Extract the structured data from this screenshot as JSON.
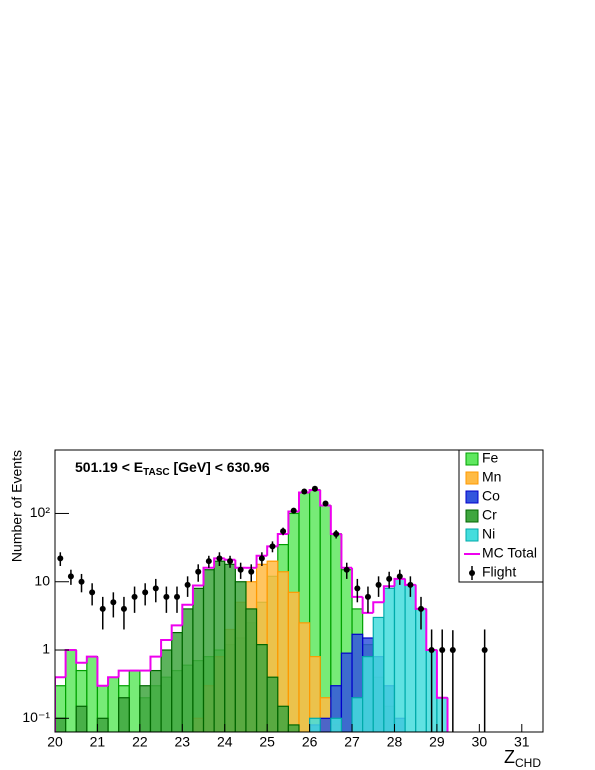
{
  "chart_data": {
    "type": "histogram",
    "title": {
      "prefix": "501.19 < E",
      "subscript": "TASC",
      "suffix": " [GeV] < 630.96"
    },
    "x_label": {
      "main": "Z",
      "subscript": "CHD"
    },
    "y_label": "Number of Events",
    "log_y": true,
    "legend": "top-right",
    "bins": [
      20,
      20.25,
      20.5,
      20.75,
      21,
      21.25,
      21.5,
      21.75,
      22,
      22.25,
      22.5,
      22.75,
      23,
      23.25,
      23.5,
      23.75,
      24,
      24.25,
      24.5,
      24.75,
      25,
      25.25,
      25.5,
      25.75,
      26,
      26.25,
      26.5,
      26.75,
      27,
      27.25,
      27.5,
      27.75,
      28,
      28.25,
      28.5,
      28.75,
      29,
      29.25,
      29.5,
      29.75,
      30,
      30.25,
      30.5,
      30.75,
      31,
      31.25,
      31.5
    ],
    "xlim": [
      20,
      31.5
    ],
    "xticks": [
      20,
      21,
      22,
      23,
      24,
      25,
      26,
      27,
      28,
      29,
      30,
      31
    ],
    "ylim": [
      0.063,
      850
    ],
    "yticks": [
      {
        "value": 0.1,
        "label": "10⁻¹"
      },
      1,
      10,
      {
        "value": 100,
        "label": "10²"
      }
    ],
    "series": [
      {
        "name": "Fe",
        "style": "filled",
        "color": "#5fe85f",
        "edge": "#00a000",
        "values": [
          0.3,
          1,
          0.5,
          0.8,
          0.3,
          0.4,
          0.3,
          0.5,
          0.2,
          0.3,
          0.4,
          0.5,
          0.6,
          0.7,
          0.8,
          1,
          1.2,
          1.5,
          2.5,
          5,
          12,
          35,
          100,
          200,
          220,
          130,
          50,
          15,
          4,
          1.2,
          0.4,
          0.15,
          null,
          null,
          null,
          null,
          null,
          null,
          null,
          null,
          null,
          null,
          null,
          null,
          null,
          null
        ]
      },
      {
        "name": "Mn",
        "style": "filled",
        "color": "#ffbb44",
        "edge": "#ff9900",
        "values": [
          null,
          null,
          null,
          null,
          null,
          null,
          null,
          null,
          null,
          null,
          null,
          null,
          null,
          0.1,
          0.3,
          0.8,
          2,
          5,
          10,
          18,
          20,
          14,
          7,
          2.5,
          0.8,
          0.2,
          0.08,
          null,
          null,
          null,
          null,
          null,
          null,
          null,
          null,
          null,
          null,
          null,
          null,
          null,
          null,
          null,
          null,
          null,
          null,
          null
        ]
      },
      {
        "name": "Co",
        "style": "filled",
        "color": "#3355dd",
        "edge": "#0000cc",
        "values": [
          null,
          null,
          null,
          null,
          null,
          null,
          null,
          null,
          null,
          null,
          null,
          null,
          null,
          null,
          null,
          null,
          null,
          null,
          null,
          null,
          null,
          null,
          null,
          null,
          0.08,
          0.1,
          0.3,
          0.9,
          1.7,
          1.5,
          0.8,
          0.3,
          0.1,
          null,
          null,
          null,
          null,
          null,
          null,
          null,
          null,
          null,
          null,
          null,
          null,
          null
        ]
      },
      {
        "name": "Cr",
        "style": "filled",
        "color": "#3fa63f",
        "edge": "#006600",
        "values": [
          0.1,
          null,
          0.15,
          null,
          0.1,
          null,
          0.2,
          null,
          0.3,
          0.5,
          1,
          1.8,
          4,
          8,
          15,
          20,
          18,
          10,
          4,
          1.2,
          0.4,
          0.15,
          0.08,
          null,
          null,
          null,
          null,
          null,
          null,
          null,
          null,
          null,
          null,
          null,
          null,
          null,
          null,
          null,
          null,
          null,
          null,
          null,
          null,
          null,
          null,
          null
        ]
      },
      {
        "name": "Ni",
        "style": "filled",
        "color": "#44dddd",
        "edge": "#00aaaa",
        "values": [
          null,
          null,
          null,
          null,
          null,
          null,
          null,
          null,
          null,
          null,
          null,
          null,
          null,
          null,
          null,
          null,
          null,
          null,
          null,
          null,
          null,
          null,
          null,
          null,
          0.1,
          null,
          0.1,
          null,
          0.2,
          0.8,
          3,
          8,
          11,
          9,
          4,
          1,
          0.2,
          null,
          null,
          null,
          null,
          null,
          null,
          null,
          null,
          null
        ]
      },
      {
        "name": "MC Total",
        "style": "line",
        "color": "#ee00ee",
        "values": [
          0.4,
          1,
          0.65,
          0.8,
          0.3,
          0.4,
          0.5,
          0.5,
          0.5,
          0.8,
          1.4,
          2.3,
          4.6,
          8.8,
          16,
          22,
          21,
          16,
          16,
          24,
          33,
          50,
          107,
          203,
          221,
          131,
          50,
          16,
          6,
          3.5,
          5,
          8.6,
          11,
          9,
          4,
          1,
          0.2,
          null,
          null,
          null,
          null,
          null,
          null,
          null,
          null,
          null
        ]
      },
      {
        "name": "Flight",
        "style": "points",
        "color": "#000000",
        "values": [
          22,
          12,
          10,
          7,
          4,
          5,
          4,
          6,
          7,
          8,
          6,
          6,
          9,
          14,
          20,
          22,
          20,
          15,
          14,
          22,
          33,
          55,
          110,
          210,
          230,
          140,
          50,
          15,
          8,
          6,
          9,
          11,
          12,
          9,
          4,
          1,
          1,
          1,
          null,
          null,
          1,
          null,
          null,
          null,
          null,
          null
        ],
        "errors": [
          5,
          3,
          3,
          2.5,
          2,
          2,
          2,
          2.5,
          2.5,
          3,
          2.5,
          2.5,
          3,
          4,
          4,
          5,
          4,
          4,
          4,
          5,
          6,
          7,
          10,
          14,
          15,
          12,
          7,
          4,
          3,
          2.5,
          3,
          3,
          3,
          3,
          2,
          1,
          1,
          0.95,
          null,
          null,
          1,
          null,
          null,
          null,
          null,
          null
        ]
      }
    ]
  }
}
